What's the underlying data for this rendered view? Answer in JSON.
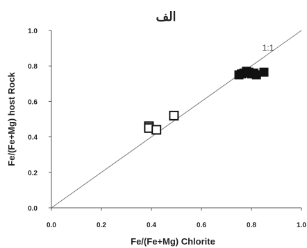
{
  "chart_data": {
    "type": "scatter",
    "title": "الف",
    "xlabel": "Fe/(Fe+Mg) Chlorite",
    "ylabel": "Fe/(Fe+Mg) host Rock",
    "xlim": [
      0.0,
      1.0
    ],
    "ylim": [
      0.0,
      1.0
    ],
    "x_ticks": [
      "0.0",
      "0.2",
      "0.4",
      "0.6",
      "0.8",
      "1.0"
    ],
    "y_ticks": [
      "0.0",
      "0.2",
      "0.4",
      "0.6",
      "0.8",
      "1.0"
    ],
    "grid": false,
    "reference_line": {
      "label": "1:1",
      "from": [
        0,
        0
      ],
      "to": [
        1,
        1
      ]
    },
    "series": [
      {
        "marker": "square-filled",
        "color": "#111111",
        "points": [
          {
            "x": 0.75,
            "y": 0.75
          },
          {
            "x": 0.76,
            "y": 0.755
          },
          {
            "x": 0.77,
            "y": 0.76
          },
          {
            "x": 0.78,
            "y": 0.77
          },
          {
            "x": 0.79,
            "y": 0.765
          },
          {
            "x": 0.8,
            "y": 0.755
          },
          {
            "x": 0.81,
            "y": 0.76
          },
          {
            "x": 0.82,
            "y": 0.75
          },
          {
            "x": 0.85,
            "y": 0.765
          }
        ]
      },
      {
        "marker": "square-open",
        "color": "#111111",
        "points": [
          {
            "x": 0.39,
            "y": 0.46
          },
          {
            "x": 0.39,
            "y": 0.45
          },
          {
            "x": 0.42,
            "y": 0.44
          },
          {
            "x": 0.49,
            "y": 0.52
          }
        ]
      }
    ]
  }
}
